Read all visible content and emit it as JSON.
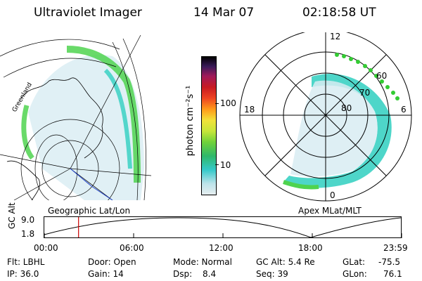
{
  "header": {
    "title": "Ultraviolet Imager",
    "date": "14 Mar 07",
    "time": "02:18:58 UT"
  },
  "geo_panel": {
    "label": "Geographic Lat/Lon",
    "coast_label": "Greenland"
  },
  "colorbar": {
    "unit_label": "photon cm⁻²s⁻¹",
    "tick_100": "100",
    "tick_10": "10"
  },
  "polar_panel": {
    "label": "Apex MLat/MLT",
    "mlt_12": "12",
    "mlt_18": "18",
    "mlt_6": "6",
    "mlt_0": "0",
    "lat_60": "60",
    "lat_70": "70",
    "lat_80": "80"
  },
  "alt_plot": {
    "ylabel": "GC Alt",
    "y_max": "9.0",
    "y_min": "1.8",
    "x_ticks": [
      "00:00",
      "06:00",
      "12:00",
      "18:00",
      "23:59"
    ],
    "current_time_hours": 2.3
  },
  "info": {
    "flt": "Flt: LBHL",
    "ip": "IP: 36.0",
    "door": "Door: Open",
    "gain": "Gain: 14",
    "mode": "Mode: Normal",
    "dsp_label": "Dsp:",
    "dsp_value": "8.4",
    "gc_alt": "GC Alt: 5.4 Re",
    "seq": "Seq: 39",
    "glat_label": "GLat:",
    "glat_value": "-75.5",
    "glon_label": "GLon:",
    "glon_value": "76.1"
  },
  "colors": {
    "aurora_green": "#33cc33",
    "aurora_cyan": "#22cccc",
    "faint": "#cfe6ee",
    "marker": "#cc0000",
    "track": "#2244cc"
  }
}
